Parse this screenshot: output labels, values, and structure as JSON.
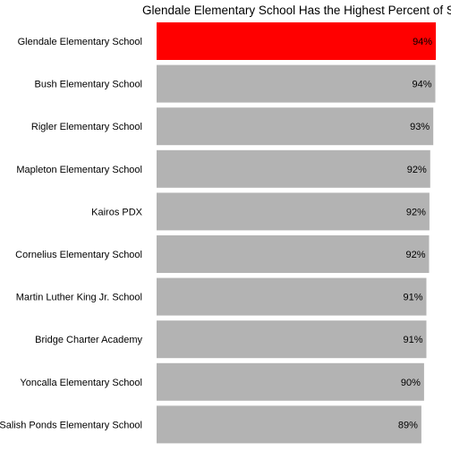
{
  "chart_data": {
    "type": "bar",
    "orientation": "horizontal",
    "title": "Glendale Elementary School Has the Highest Percent of St",
    "xlabel": "",
    "ylabel": "",
    "xlim": [
      0,
      100
    ],
    "grid": false,
    "legend": "none",
    "colors": {
      "highlight": "#ff0000",
      "default": "#b3b3b3"
    },
    "categories": [
      "Glendale Elementary School",
      "Bush Elementary School",
      "Rigler Elementary School",
      "Mapleton Elementary School",
      "Kairos PDX",
      "Cornelius Elementary School",
      "Martin Luther King Jr. School",
      "Bridge Charter Academy",
      "Yoncalla Elementary School",
      "Salish Ponds Elementary School"
    ],
    "values": [
      94.3,
      94.1,
      93.4,
      92.4,
      92.1,
      92.0,
      91.1,
      91.1,
      90.3,
      89.4
    ],
    "value_labels": [
      "94%",
      "94%",
      "93%",
      "92%",
      "92%",
      "92%",
      "91%",
      "91%",
      "90%",
      "89%"
    ],
    "highlight_index": 0
  }
}
